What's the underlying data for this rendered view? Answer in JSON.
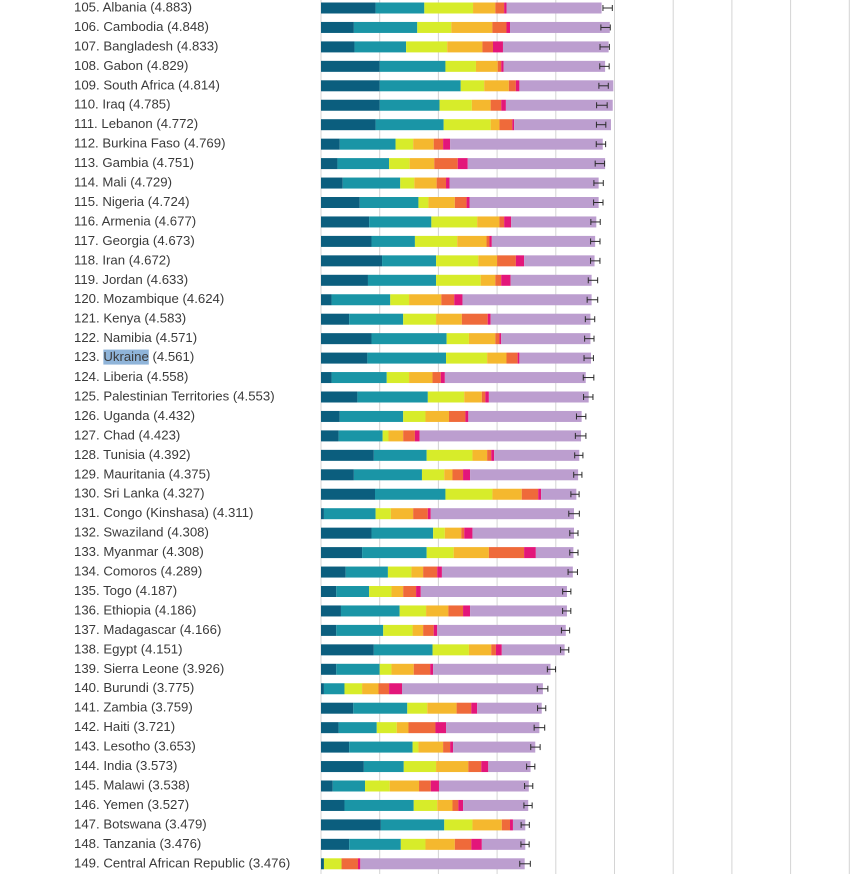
{
  "colors": {
    "gdp": "#0b5e7e",
    "social": "#1a95a6",
    "health": "#d7ec2a",
    "freedom": "#f5b82e",
    "generosity": "#ef6a3a",
    "corruption": "#e3167a",
    "residual": "#bc9ecf",
    "gridline": "#d4d4d4",
    "highlight": "#8fb4d9",
    "label": "#3a3a3a"
  },
  "chart_data": {
    "type": "bar",
    "orientation": "horizontal",
    "stacked": true,
    "title": "",
    "xlabel": "",
    "ylabel": "",
    "xlim": [
      0,
      9
    ],
    "grid": true,
    "highlighted_country": "Ukraine",
    "series_order": [
      "gdp",
      "social",
      "health",
      "freedom",
      "generosity",
      "corruption",
      "residual"
    ],
    "rows": [
      {
        "label": "105. Albania (4.883)",
        "score": 4.883,
        "ci": 0.08,
        "parts": [
          0.93,
          0.83,
          0.83,
          0.38,
          0.15,
          0.04,
          1.62
        ]
      },
      {
        "label": "106. Cambodia (4.848)",
        "score": 4.848,
        "ci": 0.08,
        "parts": [
          0.56,
          1.08,
          0.58,
          0.7,
          0.24,
          0.06,
          1.7
        ]
      },
      {
        "label": "107. Bangladesh (4.833)",
        "score": 4.833,
        "ci": 0.08,
        "parts": [
          0.57,
          0.88,
          0.7,
          0.6,
          0.18,
          0.17,
          1.8
        ]
      },
      {
        "label": "108. Gabon (4.829)",
        "score": 4.829,
        "ci": 0.08,
        "parts": [
          1.0,
          1.12,
          0.52,
          0.37,
          0.06,
          0.04,
          1.73
        ]
      },
      {
        "label": "109. South Africa (4.814)",
        "score": 4.814,
        "ci": 0.08,
        "parts": [
          1.0,
          1.38,
          0.4,
          0.42,
          0.12,
          0.06,
          1.6
        ]
      },
      {
        "label": "110. Iraq (4.785)",
        "score": 4.785,
        "ci": 0.09,
        "parts": [
          1.0,
          1.02,
          0.55,
          0.32,
          0.18,
          0.08,
          1.82
        ]
      },
      {
        "label": "111. Lebanon (4.772)",
        "score": 4.772,
        "ci": 0.08,
        "parts": [
          0.93,
          1.16,
          0.8,
          0.15,
          0.22,
          0.03,
          1.65
        ]
      },
      {
        "label": "112. Burkina Faso (4.769)",
        "score": 4.769,
        "ci": 0.08,
        "parts": [
          0.32,
          0.95,
          0.3,
          0.35,
          0.16,
          0.12,
          2.6
        ]
      },
      {
        "label": "113. Gambia (4.751)",
        "score": 4.751,
        "ci": 0.08,
        "parts": [
          0.28,
          0.88,
          0.35,
          0.42,
          0.4,
          0.17,
          2.34
        ]
      },
      {
        "label": "114. Mali (4.729)",
        "score": 4.729,
        "ci": 0.08,
        "parts": [
          0.37,
          0.98,
          0.24,
          0.38,
          0.16,
          0.06,
          2.54
        ]
      },
      {
        "label": "115. Nigeria (4.724)",
        "score": 4.724,
        "ci": 0.08,
        "parts": [
          0.66,
          1.0,
          0.17,
          0.45,
          0.2,
          0.05,
          2.2
        ]
      },
      {
        "label": "116. Armenia (4.677)",
        "score": 4.677,
        "ci": 0.08,
        "parts": [
          0.82,
          1.06,
          0.78,
          0.38,
          0.08,
          0.12,
          1.45
        ]
      },
      {
        "label": "117. Georgia (4.673)",
        "score": 4.673,
        "ci": 0.08,
        "parts": [
          0.86,
          0.74,
          0.72,
          0.5,
          0.05,
          0.04,
          1.76
        ]
      },
      {
        "label": "118. Iran (4.672)",
        "score": 4.672,
        "ci": 0.08,
        "parts": [
          1.04,
          0.92,
          0.72,
          0.32,
          0.32,
          0.14,
          1.2
        ]
      },
      {
        "label": "119. Jordan (4.633)",
        "score": 4.633,
        "ci": 0.08,
        "parts": [
          0.8,
          1.16,
          0.76,
          0.25,
          0.1,
          0.16,
          1.38
        ]
      },
      {
        "label": "120. Mozambique (4.624)",
        "score": 4.624,
        "ci": 0.09,
        "parts": [
          0.18,
          1.0,
          0.32,
          0.55,
          0.22,
          0.14,
          2.2
        ]
      },
      {
        "label": "121. Kenya (4.583)",
        "score": 4.583,
        "ci": 0.08,
        "parts": [
          0.48,
          0.92,
          0.56,
          0.44,
          0.44,
          0.05,
          1.7
        ]
      },
      {
        "label": "122. Namibia (4.571)",
        "score": 4.571,
        "ci": 0.08,
        "parts": [
          0.86,
          1.28,
          0.38,
          0.45,
          0.07,
          0.03,
          1.52
        ]
      },
      {
        "label": "123. Ukraine (4.561)",
        "score": 4.561,
        "ci": 0.08,
        "parts": [
          0.79,
          1.34,
          0.7,
          0.33,
          0.19,
          0.03,
          1.22
        ]
      },
      {
        "label": "124. Liberia (4.558)",
        "score": 4.558,
        "ci": 0.09,
        "parts": [
          0.18,
          0.94,
          0.38,
          0.4,
          0.14,
          0.07,
          2.4
        ]
      },
      {
        "label": "125. Palestinian Territories (4.553)",
        "score": 4.553,
        "ci": 0.08,
        "parts": [
          0.62,
          1.2,
          0.62,
          0.3,
          0.06,
          0.06,
          1.7
        ]
      },
      {
        "label": "126. Uganda (4.432)",
        "score": 4.432,
        "ci": 0.08,
        "parts": [
          0.32,
          1.08,
          0.38,
          0.4,
          0.28,
          0.05,
          1.93
        ]
      },
      {
        "label": "127. Chad (4.423)",
        "score": 4.423,
        "ci": 0.09,
        "parts": [
          0.3,
          0.75,
          0.1,
          0.25,
          0.2,
          0.08,
          2.75
        ]
      },
      {
        "label": "128. Tunisia (4.392)",
        "score": 4.392,
        "ci": 0.07,
        "parts": [
          0.9,
          0.9,
          0.78,
          0.25,
          0.07,
          0.05,
          1.45
        ]
      },
      {
        "label": "129. Mauritania (4.375)",
        "score": 4.375,
        "ci": 0.07,
        "parts": [
          0.56,
          1.16,
          0.38,
          0.14,
          0.18,
          0.12,
          1.84
        ]
      },
      {
        "label": "130. Sri Lanka (4.327)",
        "score": 4.327,
        "ci": 0.07,
        "parts": [
          0.92,
          1.2,
          0.8,
          0.5,
          0.28,
          0.05,
          0.6
        ]
      },
      {
        "label": "131. Congo (Kinshasa) (4.311)",
        "score": 4.311,
        "ci": 0.09,
        "parts": [
          0.05,
          0.88,
          0.26,
          0.38,
          0.25,
          0.05,
          2.44
        ]
      },
      {
        "label": "132. Swaziland (4.308)",
        "score": 4.308,
        "ci": 0.07,
        "parts": [
          0.86,
          1.05,
          0.2,
          0.28,
          0.05,
          0.14,
          1.73
        ]
      },
      {
        "label": "133. Myanmar (4.308)",
        "score": 4.308,
        "ci": 0.07,
        "parts": [
          0.7,
          1.1,
          0.46,
          0.6,
          0.6,
          0.2,
          0.64
        ]
      },
      {
        "label": "134. Comoros (4.289)",
        "score": 4.289,
        "ci": 0.08,
        "parts": [
          0.42,
          0.72,
          0.4,
          0.2,
          0.24,
          0.08,
          2.23
        ]
      },
      {
        "label": "135. Togo (4.187)",
        "score": 4.187,
        "ci": 0.07,
        "parts": [
          0.26,
          0.56,
          0.38,
          0.2,
          0.22,
          0.08,
          2.49
        ]
      },
      {
        "label": "136. Ethiopia (4.186)",
        "score": 4.186,
        "ci": 0.07,
        "parts": [
          0.34,
          1.0,
          0.45,
          0.38,
          0.25,
          0.12,
          1.65
        ]
      },
      {
        "label": "137. Madagascar (4.166)",
        "score": 4.166,
        "ci": 0.07,
        "parts": [
          0.26,
          0.8,
          0.5,
          0.18,
          0.18,
          0.06,
          2.19
        ]
      },
      {
        "label": "138. Egypt (4.151)",
        "score": 4.151,
        "ci": 0.07,
        "parts": [
          0.9,
          1.0,
          0.62,
          0.38,
          0.08,
          0.1,
          1.07
        ]
      },
      {
        "label": "139. Sierra Leone (3.926)",
        "score": 3.926,
        "ci": 0.07,
        "parts": [
          0.26,
          0.74,
          0.2,
          0.38,
          0.28,
          0.05,
          2.0
        ]
      },
      {
        "label": "140. Burundi (3.775)",
        "score": 3.775,
        "ci": 0.09,
        "parts": [
          0.05,
          0.35,
          0.3,
          0.28,
          0.18,
          0.22,
          2.4
        ]
      },
      {
        "label": "141. Zambia (3.759)",
        "score": 3.759,
        "ci": 0.07,
        "parts": [
          0.55,
          0.92,
          0.34,
          0.5,
          0.25,
          0.1,
          1.1
        ]
      },
      {
        "label": "142. Haiti (3.721)",
        "score": 3.721,
        "ci": 0.09,
        "parts": [
          0.3,
          0.65,
          0.34,
          0.2,
          0.46,
          0.18,
          1.59
        ]
      },
      {
        "label": "143. Lesotho (3.653)",
        "score": 3.653,
        "ci": 0.08,
        "parts": [
          0.48,
          1.08,
          0.1,
          0.42,
          0.12,
          0.05,
          1.4
        ]
      },
      {
        "label": "144. India (3.573)",
        "score": 3.573,
        "ci": 0.07,
        "parts": [
          0.73,
          0.68,
          0.55,
          0.55,
          0.22,
          0.12,
          0.72
        ]
      },
      {
        "label": "145. Malawi (3.538)",
        "score": 3.538,
        "ci": 0.07,
        "parts": [
          0.2,
          0.55,
          0.42,
          0.5,
          0.2,
          0.14,
          1.53
        ]
      },
      {
        "label": "146. Yemen (3.527)",
        "score": 3.527,
        "ci": 0.07,
        "parts": [
          0.4,
          1.18,
          0.4,
          0.26,
          0.1,
          0.08,
          1.11
        ]
      },
      {
        "label": "147. Botswana (3.479)",
        "score": 3.479,
        "ci": 0.07,
        "parts": [
          1.02,
          1.08,
          0.48,
          0.5,
          0.14,
          0.05,
          0.21
        ]
      },
      {
        "label": "148. Tanzania (3.476)",
        "score": 3.476,
        "ci": 0.07,
        "parts": [
          0.48,
          0.88,
          0.42,
          0.5,
          0.28,
          0.18,
          0.74
        ]
      },
      {
        "label": "149. Central African Republic (3.476)",
        "score": 3.476,
        "ci": 0.09,
        "parts": [
          0.05,
          0.0,
          0.3,
          0.0,
          0.28,
          0.04,
          2.8
        ]
      }
    ]
  }
}
